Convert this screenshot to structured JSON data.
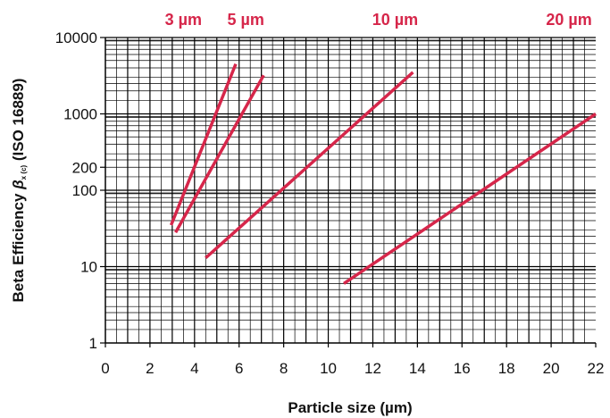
{
  "chart_data": {
    "type": "line",
    "xlabel": "Particle size (µm)",
    "ylabel_main": "Beta Efficiency ",
    "ylabel_beta": "β",
    "ylabel_sub": "x (c)",
    "ylabel_suffix": " (ISO 16889)",
    "xlim": [
      0,
      22
    ],
    "ylim": [
      1,
      10000
    ],
    "y_scale": "log",
    "grid": true,
    "x_ticks": [
      "0",
      "2",
      "4",
      "6",
      "8",
      "10",
      "12",
      "14",
      "16",
      "18",
      "20",
      "22"
    ],
    "y_ticks": [
      {
        "value": 1,
        "label": "1"
      },
      {
        "value": 10,
        "label": "10"
      },
      {
        "value": 100,
        "label": "100"
      },
      {
        "value": 200,
        "label": "200"
      },
      {
        "value": 1000,
        "label": "1000"
      },
      {
        "value": 10000,
        "label": "10000"
      }
    ],
    "series": [
      {
        "name": "3 µm",
        "x": [
          2.95,
          5.85
        ],
        "y": [
          35,
          4500
        ],
        "label_x": 3.5
      },
      {
        "name": "5 µm",
        "x": [
          3.15,
          7.1
        ],
        "y": [
          28,
          3200
        ],
        "label_x": 6.3
      },
      {
        "name": "10 µm",
        "x": [
          4.5,
          13.8
        ],
        "y": [
          13,
          3500
        ],
        "label_x": 13.0
      },
      {
        "name": "20 µm",
        "x": [
          10.7,
          22.0
        ],
        "y": [
          6,
          1000
        ],
        "label_x": 20.8
      }
    ],
    "series_color": "#d6264a"
  }
}
